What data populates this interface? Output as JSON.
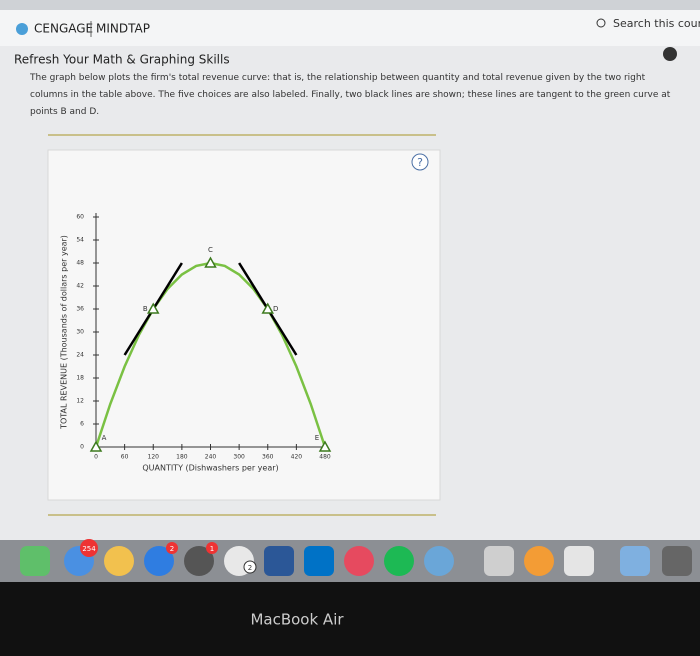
{
  "header": {
    "brand": "CENGAGE",
    "product": "MINDTAP",
    "search": "Search this course"
  },
  "section_title": "Refresh Your Math & Graphing Skills",
  "instructions": "The graph below plots the firm's total revenue curve: that is, the relationship between quantity and total revenue given by the two right columns in the table above. The five choices are also labeled. Finally, two black lines are shown; these lines are tangent to the green curve at points B and D.",
  "help": "?",
  "chart_data": {
    "type": "line",
    "x_label": "QUANTITY (Dishwashers per year)",
    "y_label": "TOTAL REVENUE (Thousands of dollars per year)",
    "x": [
      0,
      30,
      60,
      90,
      120,
      150,
      180,
      210,
      240,
      270,
      300,
      330,
      360,
      390,
      420,
      450,
      480
    ],
    "series": [
      {
        "color": "#7ac143",
        "values": [
          0,
          11.25,
          21,
          29.25,
          36,
          41.25,
          45,
          47.25,
          48,
          47.25,
          45,
          41.25,
          36,
          29.25,
          21,
          11.25,
          0
        ]
      }
    ],
    "lines": [
      {
        "color": "#000000",
        "x": [
          60,
          180
        ],
        "y": [
          24,
          48
        ]
      },
      {
        "color": "#000000",
        "x": [
          300,
          420
        ],
        "y": [
          48,
          24
        ]
      }
    ],
    "points": [
      {
        "label": "A",
        "x": 0,
        "y": 0
      },
      {
        "label": "B",
        "x": 120,
        "y": 36
      },
      {
        "label": "C",
        "x": 240,
        "y": 48
      },
      {
        "label": "D",
        "x": 360,
        "y": 36
      },
      {
        "label": "E",
        "x": 480,
        "y": 0
      }
    ],
    "xlim": [
      0,
      480
    ],
    "xticks": [
      0,
      60,
      120,
      180,
      240,
      300,
      360,
      420,
      480
    ],
    "ylim": [
      0,
      60
    ],
    "yticks": [
      0,
      6,
      12,
      18,
      24,
      30,
      36,
      42,
      48,
      54,
      60
    ]
  },
  "dock": {
    "badges": [
      "254",
      "2",
      "1",
      "2"
    ]
  },
  "device": "MacBook Air"
}
